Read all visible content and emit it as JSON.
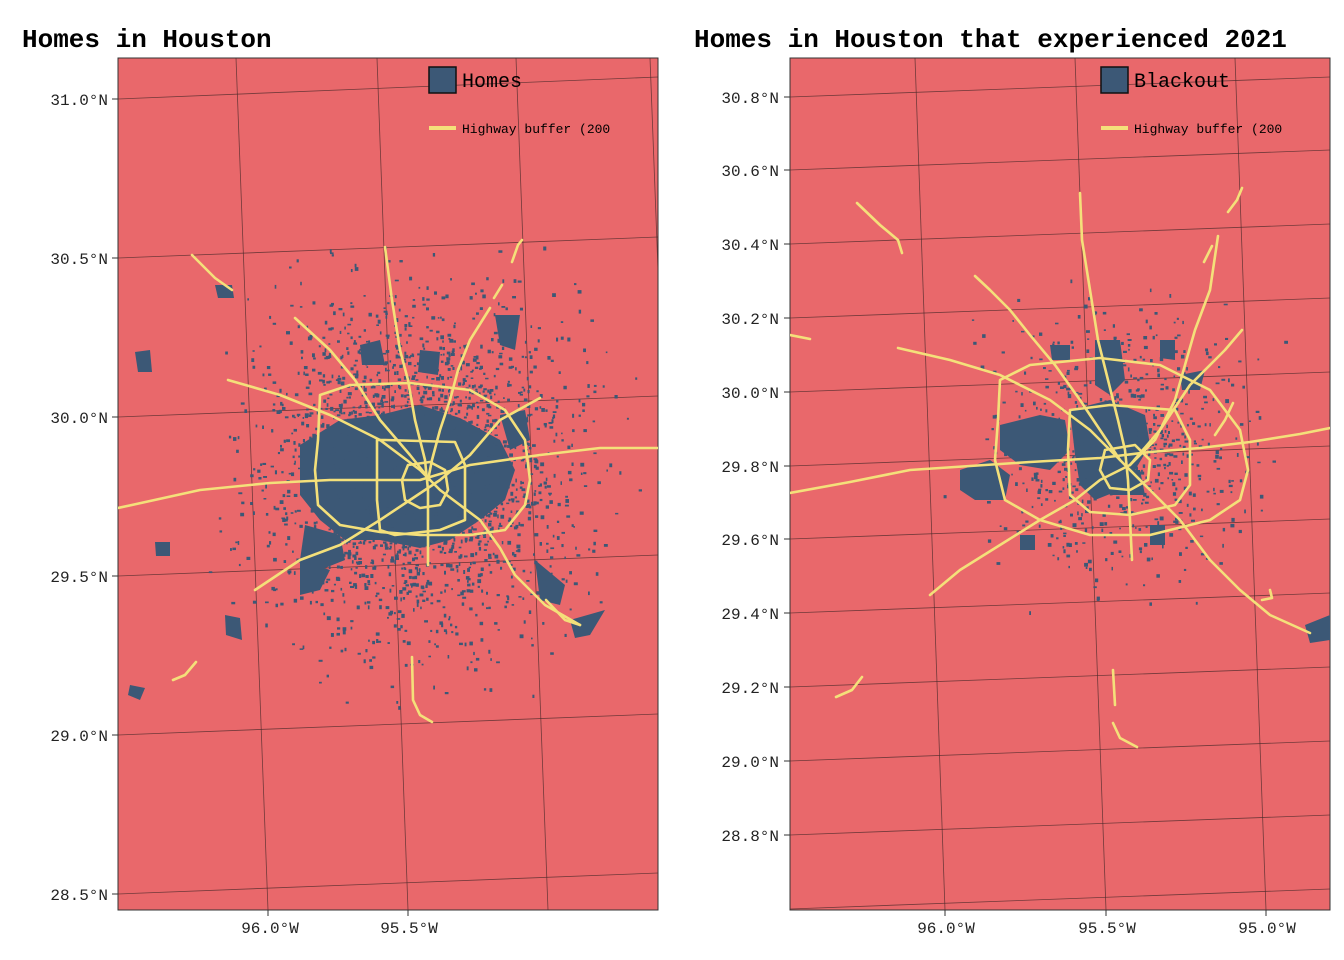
{
  "colors": {
    "background": "#e9686b",
    "homes": "#3c5876",
    "highway": "#f4e07a"
  },
  "panels": [
    {
      "title": "Homes in Houston",
      "legend": {
        "fill_label": "Homes",
        "line_label": "Highway buffer (200"
      },
      "lat_ticks": [
        "31.0°N",
        "30.5°N",
        "30.0°N",
        "29.5°N",
        "29.0°N",
        "28.5°N"
      ],
      "lon_ticks": [
        "96.0°W",
        "95.5°W"
      ]
    },
    {
      "title": "Homes in Houston that experienced 2021",
      "legend": {
        "fill_label": "Blackout",
        "line_label": "Highway buffer (200"
      },
      "lat_ticks": [
        "30.8°N",
        "30.6°N",
        "30.4°N",
        "30.2°N",
        "30.0°N",
        "29.8°N",
        "29.6°N",
        "29.4°N",
        "29.2°N",
        "29.0°N",
        "28.8°N"
      ],
      "lon_ticks": [
        "96.0°W",
        "95.5°W",
        "95.0°W"
      ]
    }
  ]
}
